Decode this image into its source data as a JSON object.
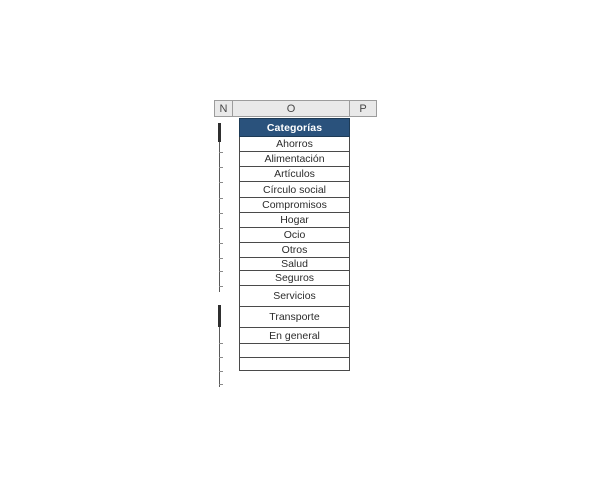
{
  "colors": {
    "category_header_bg": "#2a527c",
    "category_header_text": "#ffffff",
    "column_header_bg": "#e9e9e9",
    "grid_border": "#4a4a4a"
  },
  "spreadsheet": {
    "column_headers": [
      {
        "label": "N"
      },
      {
        "label": "O"
      },
      {
        "label": "P"
      }
    ],
    "table": {
      "header": "Categorías",
      "rows": [
        "Ahorros",
        "Alimentación",
        "Artículos",
        "Círculo social",
        "Compromisos",
        "Hogar",
        "Ocio",
        "Otros",
        "Salud",
        "Seguros",
        "Servicios",
        "Transporte",
        "En general",
        "",
        ""
      ]
    }
  }
}
